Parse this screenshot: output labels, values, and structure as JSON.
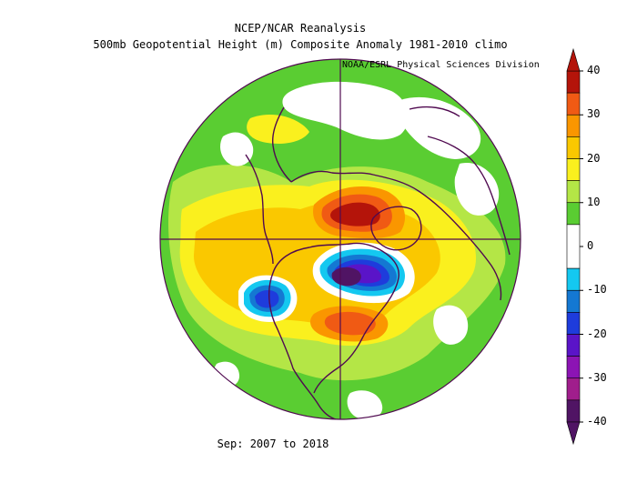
{
  "header": {
    "title": "NCEP/NCAR Reanalysis",
    "subtitle": "500mb Geopotential Height (m) Composite Anomaly 1981-2010 climo",
    "credit": "NOAA/ESRL Physical Sciences Division"
  },
  "footer": {
    "period": "Sep: 2007 to 2018"
  },
  "colorbar": {
    "ticks": [
      "40",
      "30",
      "20",
      "10",
      "0",
      "-10",
      "-20",
      "-30",
      "-40"
    ],
    "bins": [
      {
        "min": 35,
        "max": 40,
        "color": "#b4140a"
      },
      {
        "min": 30,
        "max": 35,
        "color": "#f05a14"
      },
      {
        "min": 25,
        "max": 30,
        "color": "#fa9600"
      },
      {
        "min": 20,
        "max": 25,
        "color": "#fac800"
      },
      {
        "min": 15,
        "max": 20,
        "color": "#faf01e"
      },
      {
        "min": 10,
        "max": 15,
        "color": "#b4e646"
      },
      {
        "min": 5,
        "max": 10,
        "color": "#5acd32"
      },
      {
        "min": -5,
        "max": 5,
        "color": "#ffffff"
      },
      {
        "min": -10,
        "max": -5,
        "color": "#14c8f0"
      },
      {
        "min": -15,
        "max": -10,
        "color": "#1478d2"
      },
      {
        "min": -20,
        "max": -15,
        "color": "#1e3cdc"
      },
      {
        "min": -25,
        "max": -20,
        "color": "#5a14c8"
      },
      {
        "min": -30,
        "max": -25,
        "color": "#8c14b4"
      },
      {
        "min": -35,
        "max": -30,
        "color": "#a01e8c"
      },
      {
        "min": -40,
        "max": -35,
        "color": "#501464"
      }
    ]
  },
  "map": {
    "projection": "north-polar-stereographic",
    "coastline_color": "#500a50",
    "grid_color": "#500a50"
  }
}
